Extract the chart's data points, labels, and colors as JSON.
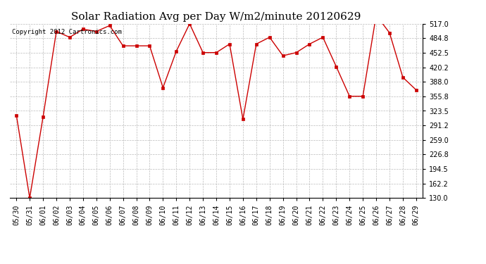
{
  "title": "Solar Radiation Avg per Day W/m2/minute 20120629",
  "copyright": "Copyright 2012 Cartronics.com",
  "labels": [
    "05/30",
    "05/31",
    "06/01",
    "06/02",
    "06/03",
    "06/04",
    "06/05",
    "06/06",
    "06/07",
    "06/08",
    "06/09",
    "06/10",
    "06/11",
    "06/12",
    "06/13",
    "06/14",
    "06/15",
    "06/16",
    "06/17",
    "06/18",
    "06/19",
    "06/20",
    "06/21",
    "06/22",
    "06/23",
    "06/24",
    "06/25",
    "06/26",
    "06/27",
    "06/28",
    "06/29"
  ],
  "values": [
    314.0,
    130.0,
    310.0,
    500.0,
    487.0,
    505.0,
    500.0,
    513.0,
    468.0,
    468.0,
    468.0,
    375.0,
    456.0,
    517.0,
    453.0,
    453.0,
    472.0,
    305.0,
    472.0,
    487.0,
    446.0,
    453.0,
    472.0,
    487.0,
    422.0,
    356.0,
    356.0,
    536.0,
    497.0,
    398.0,
    370.0
  ],
  "line_color": "#cc0000",
  "marker": "s",
  "marker_size": 2.5,
  "ylim": [
    130.0,
    517.0
  ],
  "yticks": [
    130.0,
    162.2,
    194.5,
    226.8,
    259.0,
    291.2,
    323.5,
    355.8,
    388.0,
    420.2,
    452.5,
    484.8,
    517.0
  ],
  "bg_color": "#ffffff",
  "grid_color": "#bbbbbb",
  "title_fontsize": 11,
  "tick_fontsize": 7,
  "copyright_fontsize": 6.5
}
